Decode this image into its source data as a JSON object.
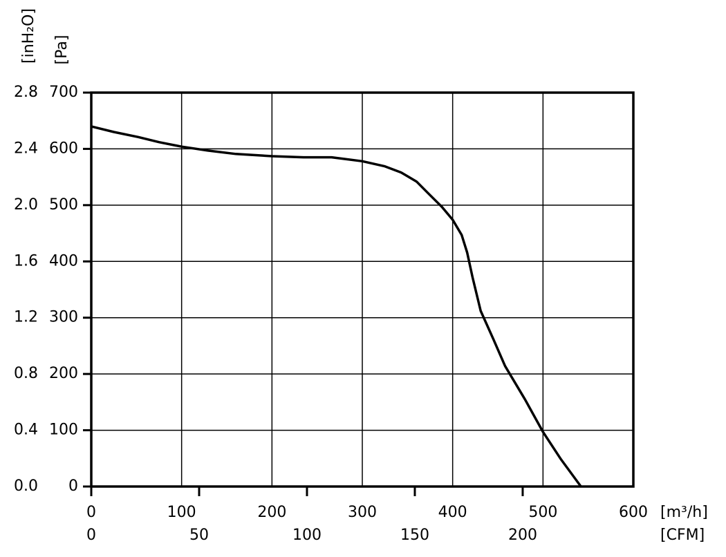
{
  "chart_data": {
    "type": "line",
    "y_label": "[Pa]",
    "y2_label": "[inH₂O]",
    "x_label": "[m³/h]",
    "x2_label": "[CFM]",
    "x": [
      0,
      25,
      52,
      75,
      100,
      129,
      160,
      200,
      235,
      266,
      300,
      325,
      343,
      360,
      373,
      388,
      400,
      410,
      416,
      422,
      431,
      445,
      458,
      480,
      500,
      520,
      542
    ],
    "series": [
      {
        "color": "#000000",
        "values": [
          640,
          630,
          621,
          612,
          604,
          597,
          591,
          587,
          585,
          585,
          578,
          569,
          558,
          542,
          521,
          497,
          474,
          447,
          416,
          372,
          312,
          262,
          214,
          155,
          97,
          48,
          0
        ]
      }
    ],
    "xlim": [
      0,
      600
    ],
    "xticks": [
      0,
      100,
      200,
      300,
      400,
      500,
      600
    ],
    "x2lim": [
      0,
      251.3
    ],
    "x2ticks": [
      0,
      50,
      100,
      150,
      200
    ],
    "ylim": [
      0,
      700
    ],
    "yticks": [
      0,
      100,
      200,
      300,
      400,
      500,
      600,
      700
    ],
    "y2lim": [
      0,
      2.8
    ],
    "y2ticks": [
      {
        "value": 0,
        "label": "0.0"
      },
      0.4,
      0.8,
      1.2,
      1.6,
      {
        "value": 2,
        "label": "2.0"
      },
      2.4,
      2.8
    ],
    "grid": true
  }
}
